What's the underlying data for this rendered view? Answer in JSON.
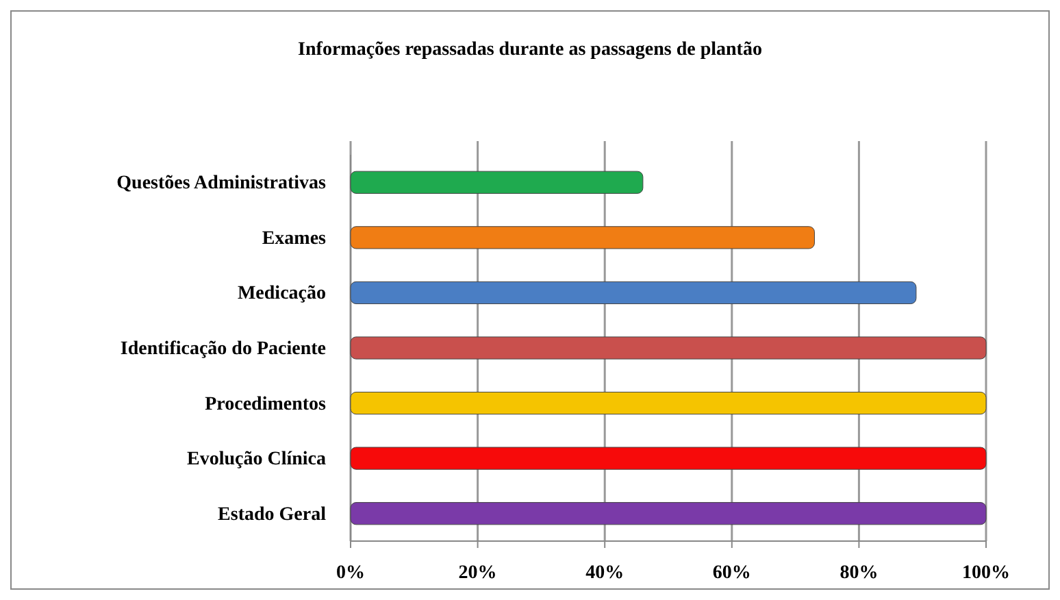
{
  "chart_data": {
    "type": "bar",
    "orientation": "horizontal",
    "title": "Informações repassadas durante as passagens de plantão",
    "categories": [
      "Questões Administrativas",
      "Exames",
      "Medicação",
      "Identificação do Paciente",
      "Procedimentos",
      "Evolução Clínica",
      "Estado Geral"
    ],
    "values": [
      46,
      73,
      89,
      100,
      100,
      100,
      100
    ],
    "colors": [
      "#1faa4f",
      "#f07d14",
      "#4a7ec4",
      "#c9504d",
      "#f5c400",
      "#f70a0a",
      "#7a3aa8"
    ],
    "xlim": [
      0,
      100
    ],
    "xticks": [
      {
        "value": 0,
        "label": "0%"
      },
      {
        "value": 20,
        "label": "20%"
      },
      {
        "value": 40,
        "label": "40%"
      },
      {
        "value": 60,
        "label": "60%"
      },
      {
        "value": 80,
        "label": "80%"
      },
      {
        "value": 100,
        "label": "100%"
      }
    ],
    "grid": "x"
  }
}
